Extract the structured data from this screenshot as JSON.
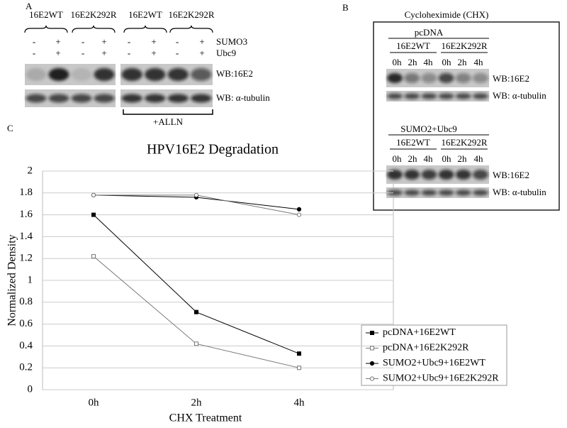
{
  "panel_a": {
    "label": "A",
    "columns": [
      "16E2WT",
      "16E2K292R",
      "16E2WT",
      "16E2K292R"
    ],
    "rows": [
      {
        "name": "SUMO3",
        "signs": [
          "-",
          "+",
          "-",
          "+",
          "-",
          "+",
          "-",
          "+"
        ]
      },
      {
        "name": "Ubc9",
        "signs": [
          "-",
          "+",
          "-",
          "+",
          "-",
          "+",
          "-",
          "+"
        ]
      }
    ],
    "blots": [
      "WB:16E2",
      "WB: α-tubulin"
    ],
    "treatment": "+ALLN"
  },
  "panel_b": {
    "label": "B",
    "title": "Cycloheximide (CHX)",
    "groups": [
      {
        "name": "pcDNA",
        "columns": [
          "16E2WT",
          "16E2K292R"
        ],
        "times": [
          "0h",
          "2h",
          "4h",
          "0h",
          "2h",
          "4h"
        ],
        "blots": [
          "WB:16E2",
          "WB: α-tubulin"
        ]
      },
      {
        "name": "SUMO2+Ubc9",
        "columns": [
          "16E2WT",
          "16E2K292R"
        ],
        "times": [
          "0h",
          "2h",
          "4h",
          "0h",
          "2h",
          "4h"
        ],
        "blots": [
          "WB:16E2",
          "WB: α-tubulin"
        ]
      }
    ]
  },
  "chart_data": {
    "type": "line",
    "panel_label": "C",
    "title": "HPV16E2 Degradation",
    "x_label": "CHX Treatment",
    "y_label": "Normalized Density",
    "categories": [
      "0h",
      "2h",
      "4h"
    ],
    "series": [
      {
        "name": "pcDNA+16E2WT",
        "color": "#000000",
        "marker": "square",
        "filled": true,
        "values": [
          1.6,
          0.71,
          0.33
        ]
      },
      {
        "name": "pcDNA+16E2K292R",
        "color": "#777777",
        "marker": "square",
        "filled": false,
        "values": [
          1.22,
          0.42,
          0.2
        ]
      },
      {
        "name": "SUMO2+Ubc9+16E2WT",
        "color": "#000000",
        "marker": "circle",
        "filled": true,
        "values": [
          1.78,
          1.76,
          1.65
        ]
      },
      {
        "name": "SUMO2+Ubc9+16E2K292R",
        "color": "#777777",
        "marker": "circle",
        "filled": false,
        "values": [
          1.78,
          1.78,
          1.6
        ]
      }
    ],
    "ylim": [
      0,
      2
    ],
    "yticks": [
      0,
      0.2,
      0.4,
      0.6,
      0.8,
      1,
      1.2,
      1.4,
      1.6,
      1.8,
      2
    ],
    "grid": true,
    "legend": "right"
  }
}
